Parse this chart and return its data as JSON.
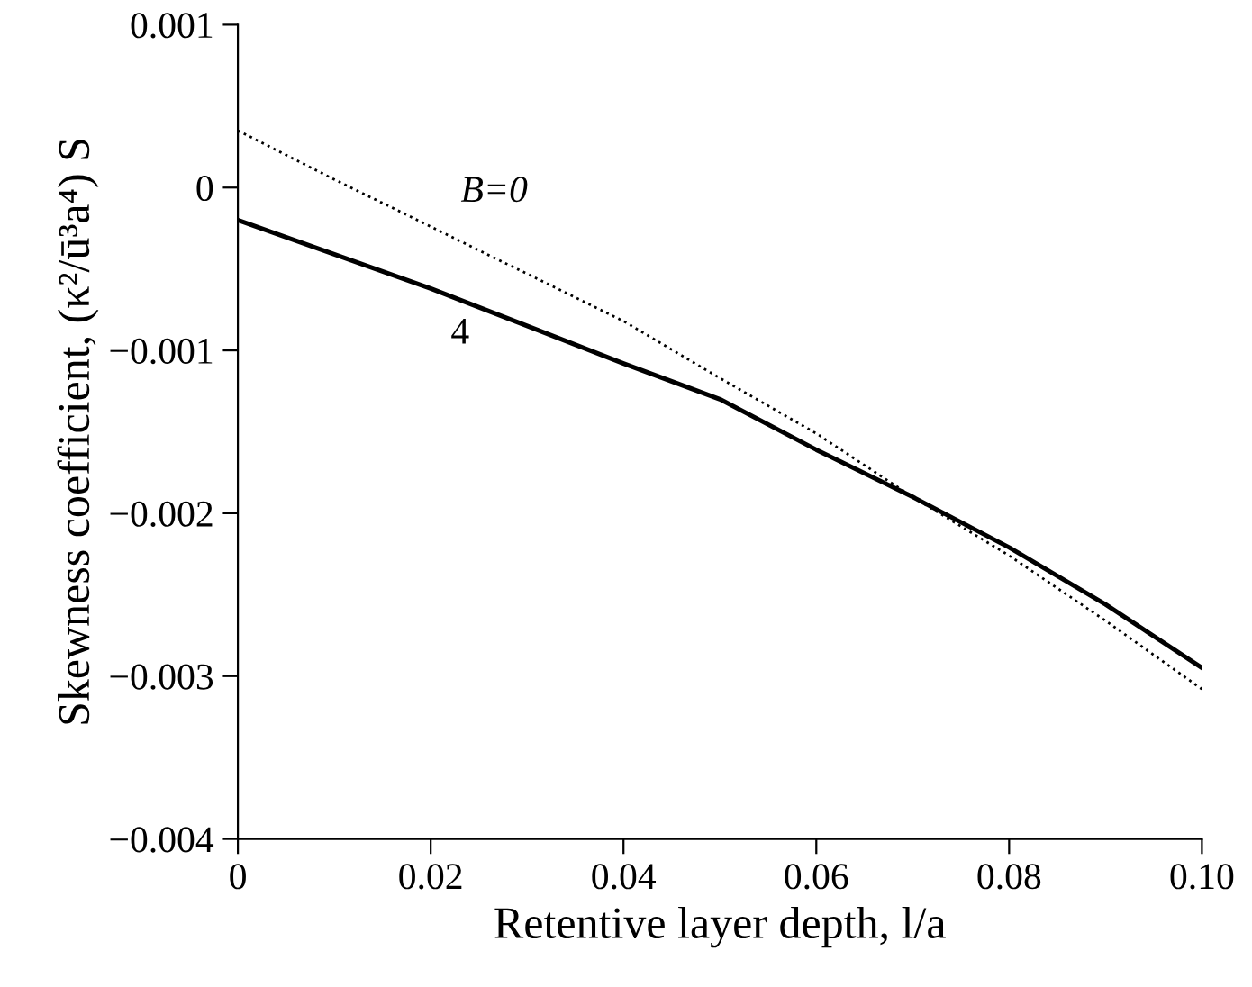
{
  "chart_data": {
    "type": "line",
    "xlabel": "Retentive layer depth, l/a",
    "ylabel": "Skewness coefficient, (κ²/ū³a⁴) S",
    "x": [
      0,
      0.01,
      0.02,
      0.03,
      0.04,
      0.05,
      0.06,
      0.07,
      0.08,
      0.09,
      0.1
    ],
    "series": [
      {
        "name": "B=0",
        "color": "#000000",
        "line_style": "dotted",
        "values": [
          0.00035,
          5e-05,
          -0.00024,
          -0.00053,
          -0.00082,
          -0.00117,
          -0.00151,
          -0.0019,
          -0.00226,
          -0.00266,
          -0.00308
        ]
      },
      {
        "name": "4",
        "color": "#000000",
        "line_style": "solid",
        "values": [
          -0.0002,
          -0.00041,
          -0.00062,
          -0.00085,
          -0.00108,
          -0.0013,
          -0.00161,
          -0.0019,
          -0.00221,
          -0.00256,
          -0.00295
        ]
      }
    ],
    "xlim": [
      0,
      0.1
    ],
    "xticks": [
      0,
      0.02,
      0.04,
      0.06,
      0.08,
      {
        "value": 0.1,
        "label": "0.10"
      }
    ],
    "ylim": [
      -0.004,
      0.001
    ],
    "yticks": [
      -0.004,
      -0.003,
      -0.002,
      -0.001,
      0,
      0.001
    ],
    "grid": false,
    "legend": false,
    "marker": "none"
  }
}
